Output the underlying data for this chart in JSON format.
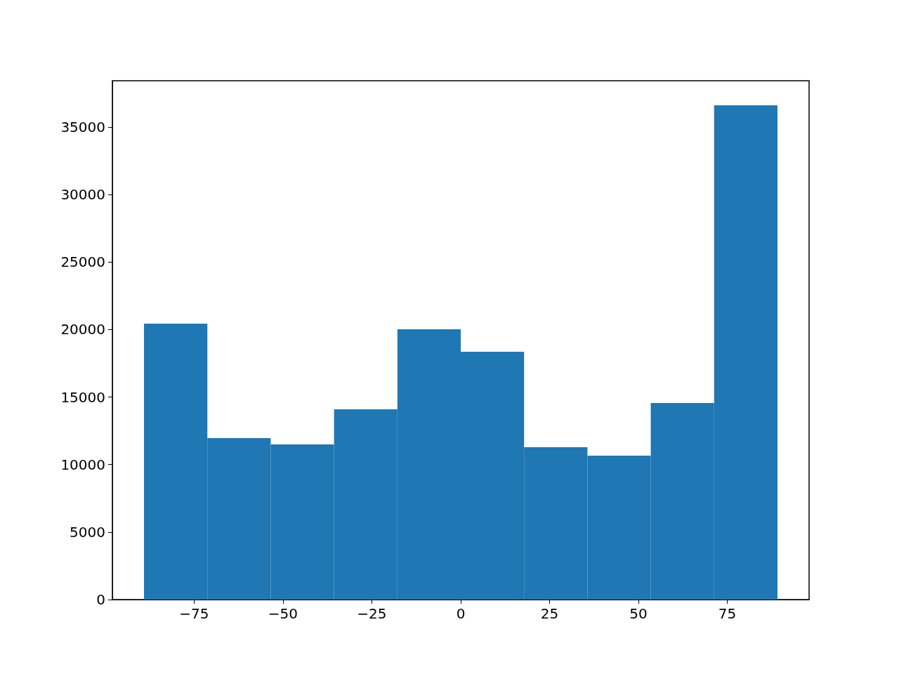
{
  "chart_data": {
    "type": "histogram",
    "bins": [
      -89.1,
      -71.28,
      -53.46,
      -35.64,
      -17.82,
      0,
      17.82,
      35.64,
      53.46,
      71.28,
      89.1
    ],
    "values": [
      20440,
      11960,
      11490,
      14090,
      20020,
      18360,
      11290,
      10660,
      14560,
      36610
    ],
    "color": "#1f77b4",
    "xlim": [
      -98,
      98
    ],
    "xticks": [
      {
        "value": -75,
        "label": "−75"
      },
      {
        "value": -50,
        "label": "−50"
      },
      {
        "value": -25,
        "label": "−25"
      },
      0,
      25,
      50,
      75
    ],
    "ylim": [
      0,
      38430
    ],
    "yticks": [
      0,
      5000,
      10000,
      15000,
      20000,
      25000,
      30000,
      35000
    ],
    "grid": false
  }
}
